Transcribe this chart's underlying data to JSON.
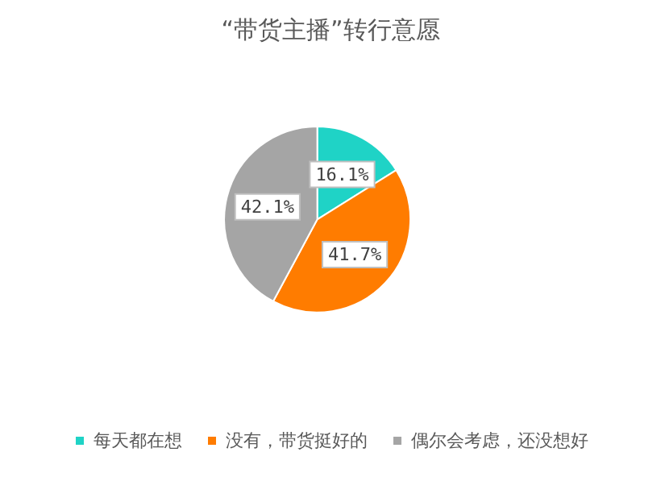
{
  "chart_data": {
    "type": "pie",
    "title": "“带货主播”转行意愿",
    "categories": [
      "每天都在想",
      "没有，带货挺好的",
      "偶尔会考虑，还没想好"
    ],
    "values": [
      16.1,
      41.7,
      42.1
    ],
    "colors": [
      "#1fd3c6",
      "#ff7c00",
      "#a5a5a5"
    ],
    "value_labels": [
      "16.1%",
      "41.7%",
      "42.1%"
    ],
    "legend": "bottom"
  }
}
